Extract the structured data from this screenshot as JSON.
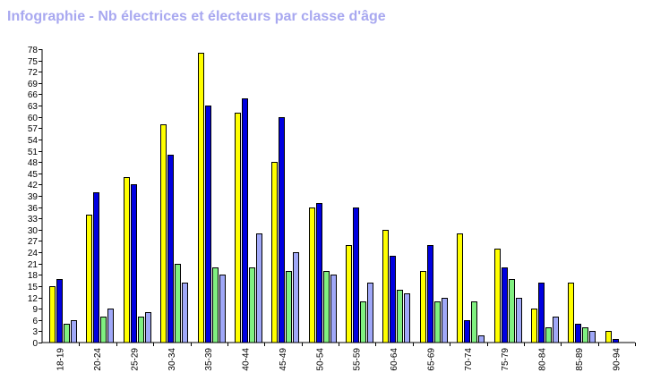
{
  "page": {
    "title": "Infographie - Nb électrices et électeurs par classe d'âge"
  },
  "chart_data": {
    "type": "bar",
    "title": "Infographie - Nb électrices et électeurs par classe d'âge",
    "xlabel": "",
    "ylabel": "",
    "ylim": [
      0,
      78
    ],
    "yticks": [
      0,
      3,
      6,
      9,
      12,
      15,
      18,
      21,
      24,
      27,
      30,
      33,
      36,
      39,
      42,
      45,
      48,
      51,
      54,
      57,
      60,
      63,
      66,
      69,
      72,
      75,
      78
    ],
    "grid": false,
    "legend": "none",
    "categories": [
      "18-19",
      "20-24",
      "25-29",
      "30-34",
      "35-39",
      "40-44",
      "45-49",
      "50-54",
      "55-59",
      "60-64",
      "65-69",
      "70-74",
      "75-79",
      "80-84",
      "85-89",
      "90-94"
    ],
    "series": [
      {
        "color": "#ffff00",
        "values": [
          15,
          34,
          44,
          58,
          77,
          61,
          48,
          36,
          26,
          30,
          19,
          29,
          25,
          9,
          16,
          3
        ]
      },
      {
        "color": "#0000e0",
        "values": [
          17,
          40,
          42,
          50,
          63,
          65,
          60,
          37,
          36,
          23,
          26,
          6,
          20,
          16,
          5,
          1
        ]
      },
      {
        "color": "#80f080",
        "values": [
          5,
          7,
          7,
          21,
          20,
          20,
          19,
          19,
          11,
          14,
          11,
          11,
          17,
          4,
          4,
          0
        ]
      },
      {
        "color": "#a0a8f8",
        "values": [
          6,
          9,
          8,
          16,
          18,
          29,
          24,
          18,
          16,
          13,
          12,
          2,
          12,
          7,
          3,
          0
        ]
      }
    ]
  }
}
